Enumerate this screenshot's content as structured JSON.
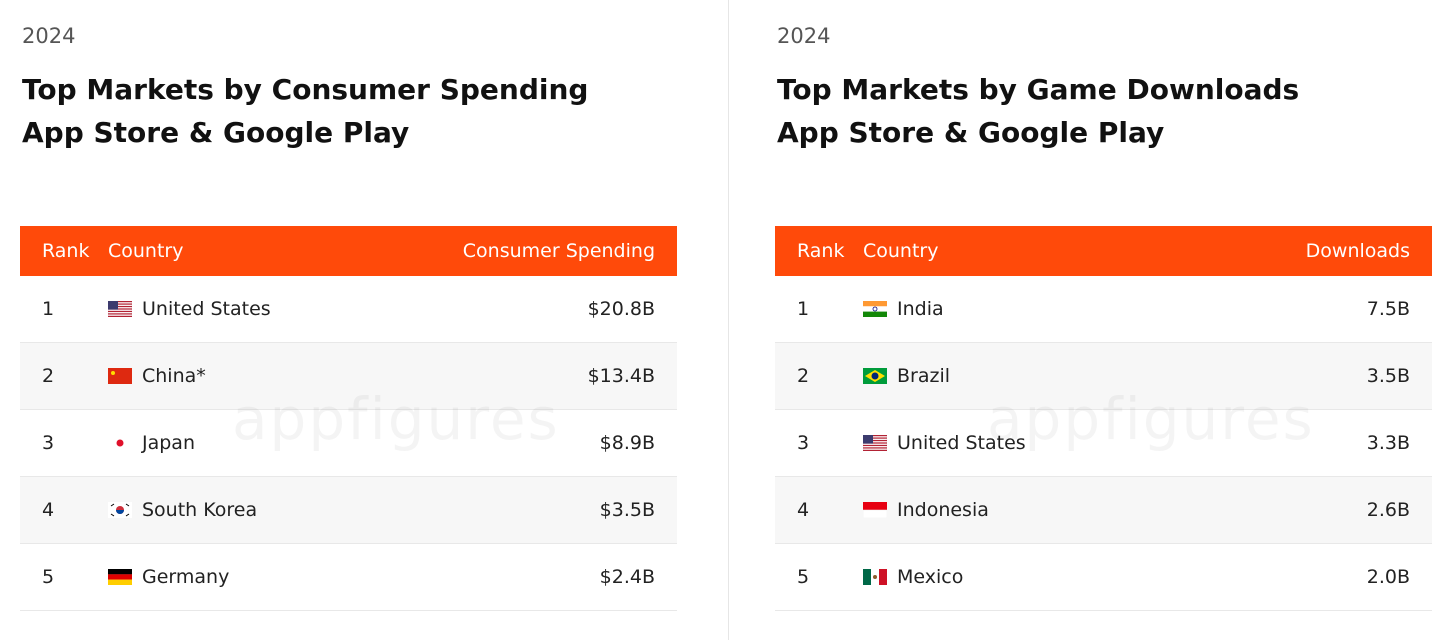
{
  "panels": [
    {
      "year": "2024",
      "title": [
        "Top Markets by Consumer Spending",
        "App Store & Google Play"
      ],
      "watermark": "appfigures",
      "table": {
        "header": [
          "Rank",
          "Country",
          "Consumer Spending"
        ],
        "rows": [
          [
            "1",
            "United States",
            "$20.8B"
          ],
          [
            "2",
            "China*",
            "$13.4B"
          ],
          [
            "3",
            "Japan",
            "$8.9B"
          ],
          [
            "4",
            "South Korea",
            "$3.5B"
          ],
          [
            "5",
            "Germany",
            "$2.4B"
          ]
        ]
      }
    },
    {
      "year": "2024",
      "title": [
        "Top Markets by Game Downloads",
        "App Store & Google Play"
      ],
      "watermark": "appfigures",
      "table": {
        "header": [
          "Rank",
          "Country",
          "Downloads"
        ],
        "rows": [
          [
            "1",
            "India",
            "7.5B"
          ],
          [
            "2",
            "Brazil",
            "3.5B"
          ],
          [
            "3",
            "United States",
            "3.3B"
          ],
          [
            "4",
            "Indonesia",
            "2.6B"
          ],
          [
            "5",
            "Mexico",
            "2.0B"
          ]
        ]
      }
    }
  ]
}
